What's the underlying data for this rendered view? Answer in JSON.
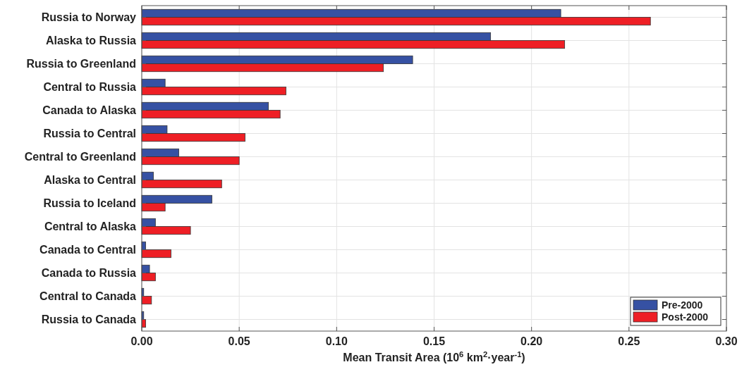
{
  "chart_data": {
    "type": "bar",
    "orientation": "horizontal",
    "xlabel": "Mean Transit Area (10$^{6}$ km$^{2}$·year$^{-1}$)",
    "categories": [
      "Russia to Norway",
      "Alaska to Russia",
      "Russia to Greenland",
      "Central to Russia",
      "Canada to Alaska",
      "Russia to Central",
      "Central to Greenland",
      "Alaska to Central",
      "Russia to Iceland",
      "Central to Alaska",
      "Canada to Central",
      "Canada to Russia",
      "Central to Canada",
      "Russia to Canada"
    ],
    "series": [
      {
        "name": "Pre-2000",
        "color": "#3651a3",
        "values": [
          0.215,
          0.179,
          0.139,
          0.012,
          0.065,
          0.013,
          0.019,
          0.006,
          0.036,
          0.007,
          0.002,
          0.004,
          0.001,
          0.001
        ]
      },
      {
        "name": "Post-2000",
        "color": "#ee1f25",
        "values": [
          0.261,
          0.217,
          0.124,
          0.074,
          0.071,
          0.053,
          0.05,
          0.041,
          0.012,
          0.025,
          0.015,
          0.007,
          0.005,
          0.002
        ]
      }
    ],
    "xlim": [
      0,
      0.3
    ],
    "xticks": [
      {
        "value": 0,
        "label": "0.00"
      },
      {
        "value": 0.05,
        "label": "0.05"
      },
      {
        "value": 0.1,
        "label": "0.10"
      },
      {
        "value": 0.15,
        "label": "0.15"
      },
      {
        "value": 0.2,
        "label": "0.20"
      },
      {
        "value": 0.25,
        "label": "0.25"
      },
      {
        "value": 0.3,
        "label": "0.30"
      }
    ],
    "grid": true,
    "legend": "bottom right"
  }
}
